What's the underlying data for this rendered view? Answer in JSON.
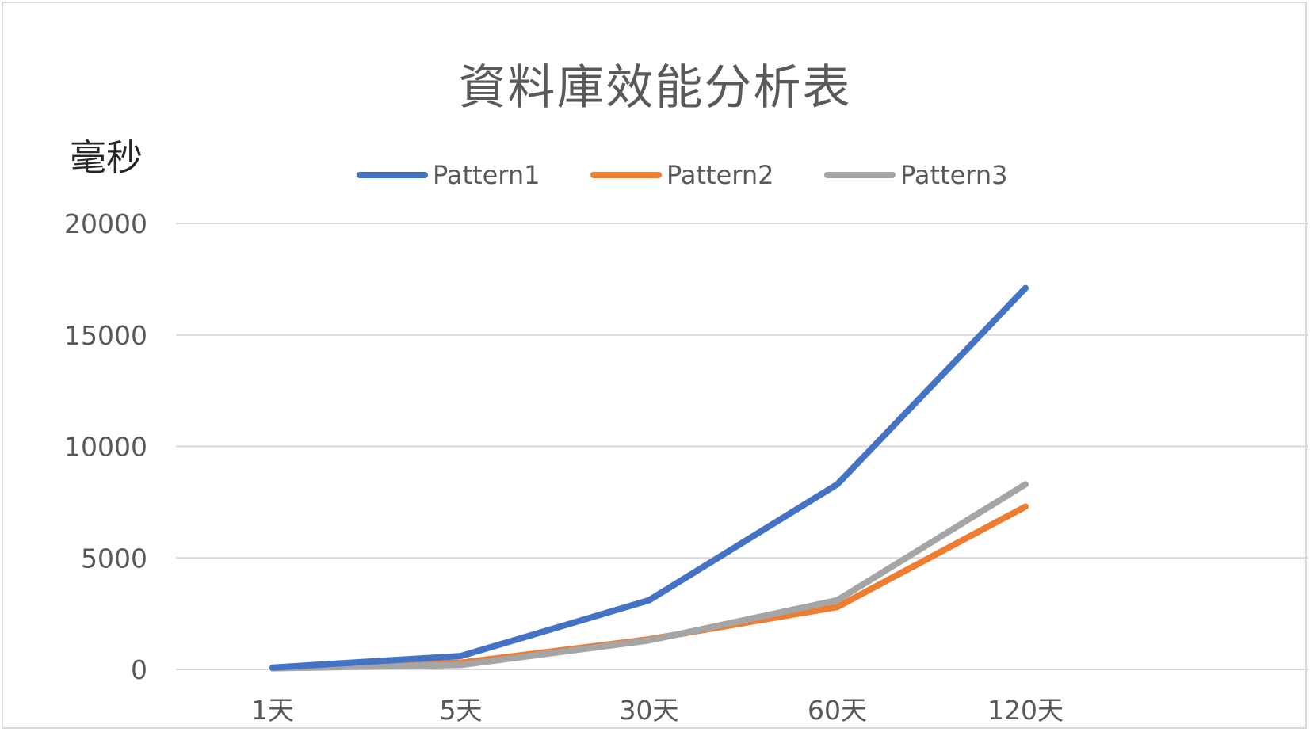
{
  "chart_data": {
    "type": "line",
    "title": "資料庫效能分析表",
    "ylabel": "毫秒",
    "xlabel": "",
    "categories": [
      "1天",
      "5天",
      "30天",
      "60天",
      "120天"
    ],
    "ylim": [
      0,
      20000
    ],
    "yticks": [
      0,
      5000,
      10000,
      15000,
      20000
    ],
    "grid": true,
    "legend_position": "top",
    "series": [
      {
        "name": "Pattern1",
        "color": "#4472c4",
        "values": [
          80,
          600,
          3100,
          8300,
          17100
        ]
      },
      {
        "name": "Pattern2",
        "color": "#ed7d31",
        "values": [
          60,
          300,
          1350,
          2800,
          7300
        ]
      },
      {
        "name": "Pattern3",
        "color": "#a5a5a5",
        "values": [
          50,
          200,
          1300,
          3100,
          8300
        ]
      }
    ]
  }
}
